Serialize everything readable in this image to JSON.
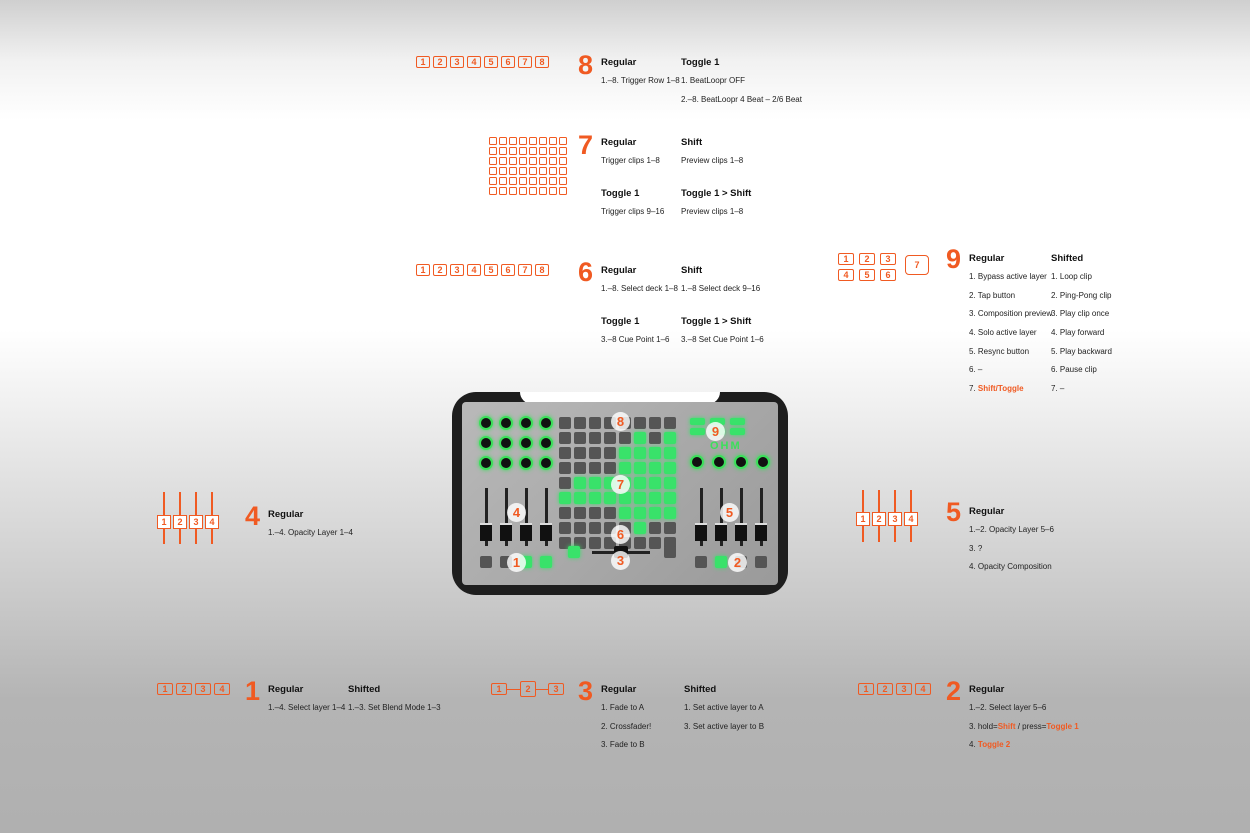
{
  "sections": {
    "s8": {
      "number": "8",
      "buttons": [
        "1",
        "2",
        "3",
        "4",
        "5",
        "6",
        "7",
        "8"
      ],
      "col1": {
        "head": "Regular",
        "items": [
          "1.–8. Trigger Row 1–8"
        ]
      },
      "col2": {
        "head": "Toggle 1",
        "items": [
          "1. BeatLoopr OFF",
          "2.–8. BeatLoopr 4 Beat – 2/6 Beat"
        ]
      }
    },
    "s7": {
      "number": "7",
      "col1": {
        "head": "Regular",
        "items": [
          "Trigger clips 1–8"
        ]
      },
      "col2": {
        "head": "Shift",
        "items": [
          "Preview clips 1–8"
        ]
      },
      "col3": {
        "head": "Toggle 1",
        "items": [
          "Trigger clips 9–16"
        ]
      },
      "col4": {
        "head": "Toggle 1 > Shift",
        "items": [
          "Preview clips 1–8"
        ]
      }
    },
    "s6": {
      "number": "6",
      "buttons": [
        "1",
        "2",
        "3",
        "4",
        "5",
        "6",
        "7",
        "8"
      ],
      "col1": {
        "head": "Regular",
        "items": [
          "1.–8. Select deck 1–8"
        ]
      },
      "col2": {
        "head": "Shift",
        "items": [
          "1.–8 Select deck 9–16"
        ]
      },
      "col3": {
        "head": "Toggle 1",
        "items": [
          "3.–8 Cue Point 1–6"
        ]
      },
      "col4": {
        "head": "Toggle 1 > Shift",
        "items": [
          "3.–8 Set Cue Point 1–6"
        ]
      }
    },
    "s9": {
      "number": "9",
      "buttons_row1": [
        "1",
        "2",
        "3"
      ],
      "buttons_row2": [
        "4",
        "5",
        "6"
      ],
      "button_extra": "7",
      "col1": {
        "head": "Regular",
        "items": [
          "1. Bypass active layer",
          "2. Tap button",
          "3. Composition preview",
          "4. Solo active layer",
          "5. Resync button",
          "6. –",
          "7. "
        ],
        "item7_highlight": "Shift/Toggle"
      },
      "col2": {
        "head": "Shifted",
        "items": [
          "1. Loop clip",
          "2. Ping-Pong clip",
          "3. Play clip once",
          "4. Play forward",
          "5. Play backward",
          "6. Pause clip",
          "7. –"
        ]
      }
    },
    "s4": {
      "number": "4",
      "faders": [
        "1",
        "2",
        "3",
        "4"
      ],
      "col1": {
        "head": "Regular",
        "items": [
          "1.–4. Opacity Layer 1–4"
        ]
      }
    },
    "s5": {
      "number": "5",
      "faders": [
        "1",
        "2",
        "3",
        "4"
      ],
      "col1": {
        "head": "Regular",
        "items": [
          "1.–2. Opacity Layer 5–6",
          "3. ?",
          "4. Opacity Composition"
        ]
      }
    },
    "s1": {
      "number": "1",
      "buttons": [
        "1",
        "2",
        "3",
        "4"
      ],
      "col1": {
        "head": "Regular",
        "items": [
          "1.–4. Select layer 1–4"
        ]
      },
      "col2": {
        "head": "Shifted",
        "items": [
          "1.–3. Set Blend Mode 1–3"
        ]
      }
    },
    "s3": {
      "number": "3",
      "buttons": [
        "1",
        "2",
        "3"
      ],
      "col1": {
        "head": "Regular",
        "items": [
          "1. Fade to A",
          "2. Crossfader!",
          "3. Fade to B"
        ]
      },
      "col2": {
        "head": "Shifted",
        "items": [
          "1. Set active layer to A",
          "3. Set active layer to B"
        ]
      }
    },
    "s2": {
      "number": "2",
      "buttons": [
        "1",
        "2",
        "3",
        "4"
      ],
      "col1": {
        "head": "Regular",
        "item1": "1.–2. Select layer 5–6",
        "item3_prefix": "3. hold=",
        "item3_shift": "Shift",
        "item3_sep": " / press=",
        "item3_toggle": "Toggle 1",
        "item4_prefix": "4. ",
        "item4_toggle": "Toggle 2"
      }
    }
  },
  "controller": {
    "logo": "OHM",
    "markers": [
      "8",
      "9",
      "7",
      "4",
      "5",
      "6",
      "1",
      "3",
      "2"
    ]
  },
  "colors": {
    "accent": "#f05a22",
    "led": "#3be05a",
    "body": "#1e1e1e"
  }
}
